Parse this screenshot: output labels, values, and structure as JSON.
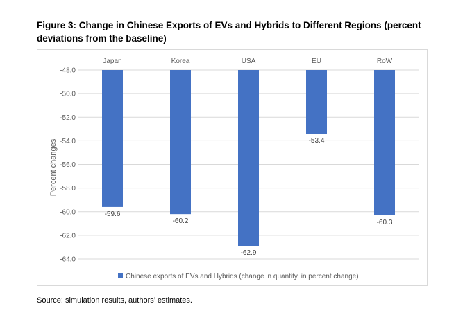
{
  "figure": {
    "title": "Figure 3: Change in Chinese Exports of EVs and Hybrids to Different Regions (percent deviations from the baseline)",
    "source": "Source: simulation results, authors’ estimates."
  },
  "colors": {
    "bar": "#4472c4",
    "grid": "#d9d9d9",
    "text": "#595959"
  },
  "chart_data": {
    "type": "bar",
    "title": "Change in Chinese Exports of EVs and Hybrids to Different Regions (percent deviations from the baseline)",
    "categories": [
      "Japan",
      "Korea",
      "USA",
      "EU",
      "RoW"
    ],
    "series": [
      {
        "name": "Chinese exports of EVs and Hybrids (change in quantity, in percent change)",
        "values": [
          -59.6,
          -60.2,
          -62.9,
          -53.4,
          -60.3
        ]
      }
    ],
    "data_labels": [
      "-59.6",
      "-60.2",
      "-62.9",
      "-53.4",
      "-60.3"
    ],
    "xlabel": "",
    "ylabel": "Percent changes",
    "ylim": [
      -64.0,
      -48.0
    ],
    "yticks": [
      -48.0,
      -50.0,
      -52.0,
      -54.0,
      -56.0,
      -58.0,
      -60.0,
      -62.0,
      -64.0
    ],
    "ytick_labels": [
      "-48.0",
      "-50.0",
      "-52.0",
      "-54.0",
      "-56.0",
      "-58.0",
      "-60.0",
      "-62.0",
      "-64.0"
    ],
    "category_axis_position": "top",
    "grid": true,
    "legend": "bottom"
  }
}
